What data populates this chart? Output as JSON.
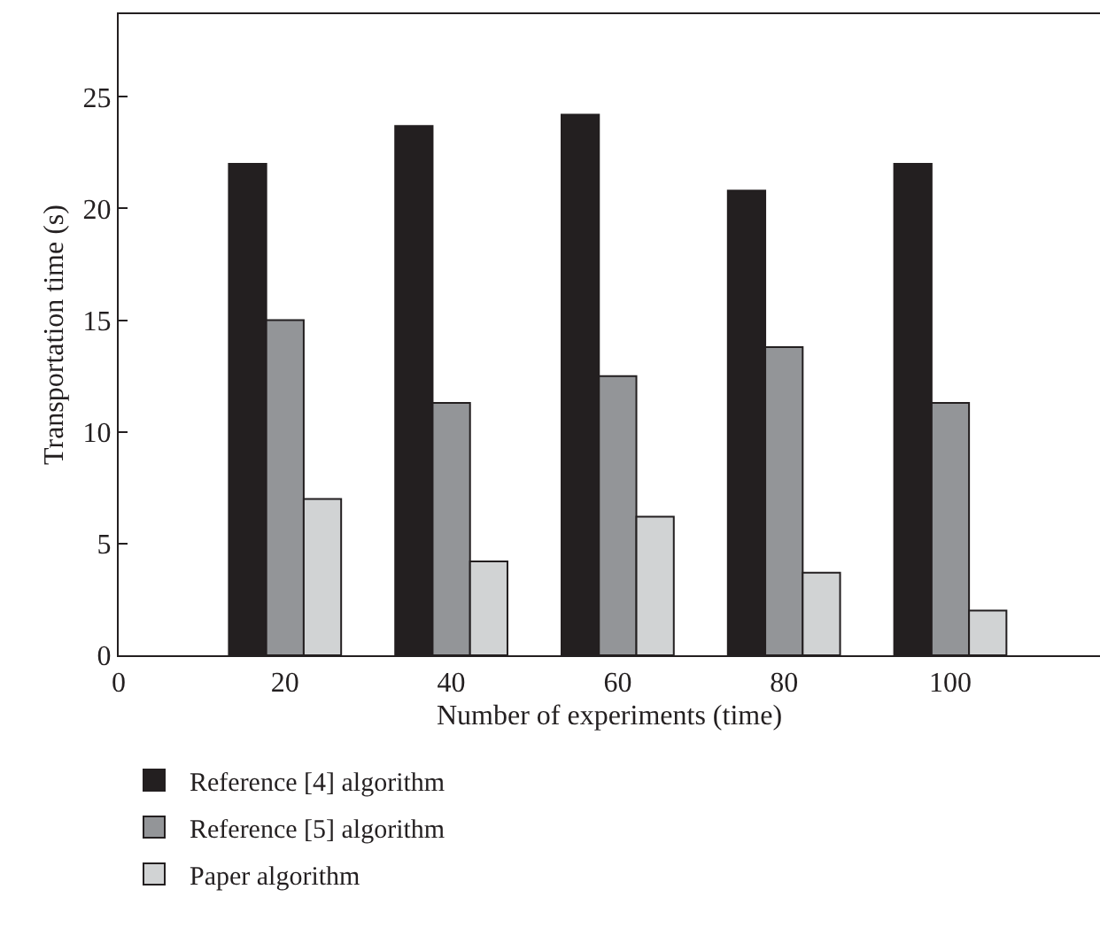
{
  "chart_data": {
    "type": "bar",
    "xlabel": "Number of experiments (time)",
    "ylabel": "Transportation time (s)",
    "x": [
      20,
      40,
      60,
      80,
      100
    ],
    "series": [
      {
        "name": "Reference [4] algorithm",
        "color": "#231f20",
        "values": [
          22,
          23.7,
          24.2,
          20.8,
          22
        ]
      },
      {
        "name": "Reference [5] algorithm",
        "color": "#939598",
        "values": [
          15,
          11.3,
          12.5,
          13.8,
          11.3
        ]
      },
      {
        "name": "Paper algorithm",
        "color": "#d1d3d4",
        "values": [
          7,
          4.2,
          6.2,
          3.7,
          2
        ]
      }
    ],
    "xlim": [
      0,
      118
    ],
    "xticks": [
      0,
      20,
      40,
      60,
      80,
      100
    ],
    "ylim": [
      0,
      28.7
    ],
    "yticks": [
      0,
      5,
      10,
      15,
      20,
      25
    ],
    "grid": false,
    "legend": "bottom left"
  }
}
